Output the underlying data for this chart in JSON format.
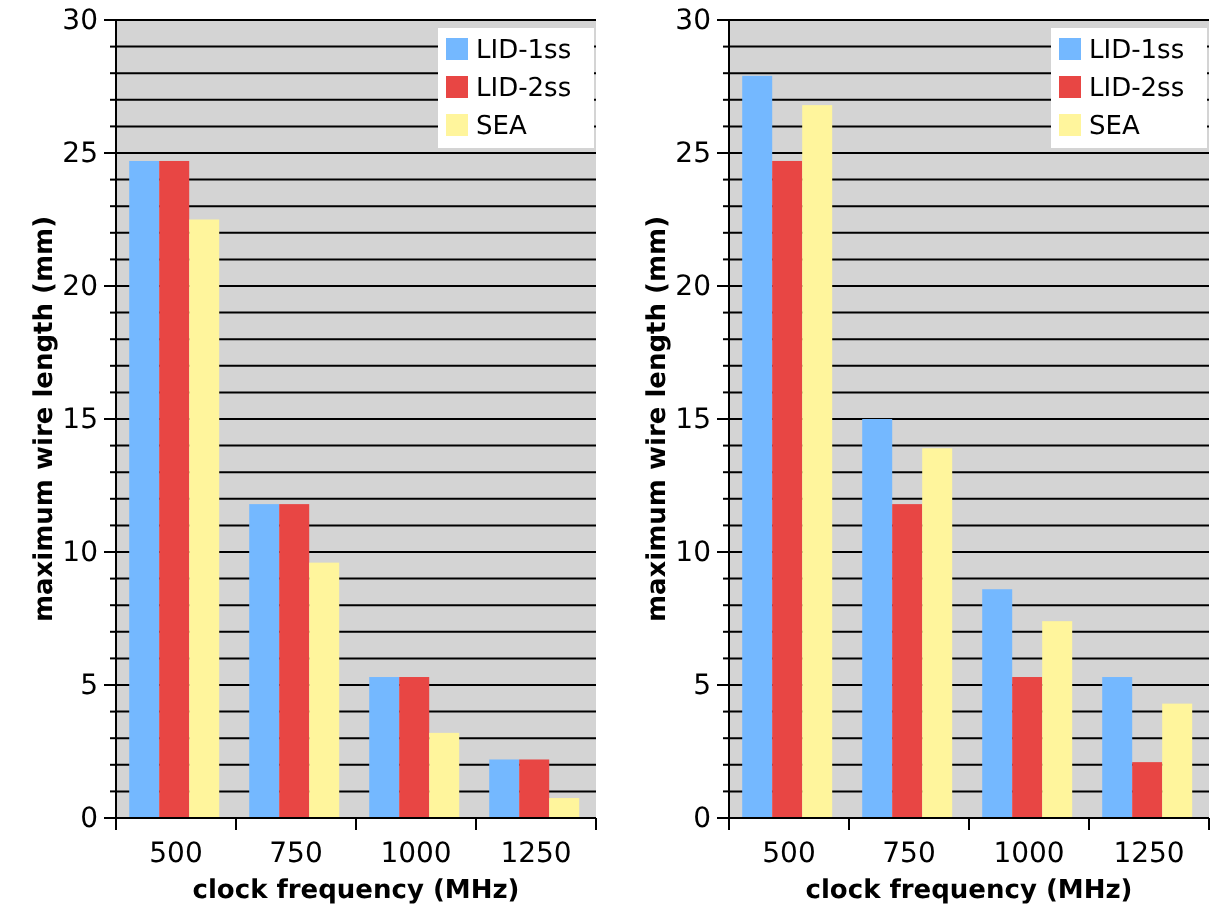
{
  "chart_data": [
    {
      "type": "bar",
      "xlabel": "clock frequency (MHz)",
      "ylabel": "maximum wire length (mm)",
      "categories": [
        "500",
        "750",
        "1000",
        "1250"
      ],
      "series": [
        {
          "name": "LID-1ss",
          "color": "#74b8ff",
          "values": [
            24.7,
            11.8,
            5.3,
            2.2
          ]
        },
        {
          "name": "LID-2ss",
          "color": "#e84644",
          "values": [
            24.7,
            11.8,
            5.3,
            2.2
          ]
        },
        {
          "name": "SEA",
          "color": "#fff59c",
          "values": [
            22.5,
            9.6,
            3.2,
            0.75
          ]
        }
      ],
      "ylim": [
        0,
        30
      ],
      "yticks": [
        0,
        {
          "value": 1,
          "label": null
        },
        {
          "value": 2,
          "label": null
        },
        {
          "value": 3,
          "label": null
        },
        {
          "value": 4,
          "label": null
        },
        5,
        {
          "value": 6,
          "label": null
        },
        {
          "value": 7,
          "label": null
        },
        {
          "value": 8,
          "label": null
        },
        {
          "value": 9,
          "label": null
        },
        10,
        {
          "value": 11,
          "label": null
        },
        {
          "value": 12,
          "label": null
        },
        {
          "value": 13,
          "label": null
        },
        {
          "value": 14,
          "label": null
        },
        15,
        {
          "value": 16,
          "label": null
        },
        {
          "value": 17,
          "label": null
        },
        {
          "value": 18,
          "label": null
        },
        {
          "value": 19,
          "label": null
        },
        20,
        {
          "value": 21,
          "label": null
        },
        {
          "value": 22,
          "label": null
        },
        {
          "value": 23,
          "label": null
        },
        {
          "value": 24,
          "label": null
        },
        25,
        {
          "value": 26,
          "label": null
        },
        {
          "value": 27,
          "label": null
        },
        {
          "value": 28,
          "label": null
        },
        {
          "value": 29,
          "label": null
        },
        30
      ],
      "grid": "y",
      "legend": "top right"
    },
    {
      "type": "bar",
      "xlabel": "clock frequency (MHz)",
      "ylabel": "maximum wire length (mm)",
      "categories": [
        "500",
        "750",
        "1000",
        "1250"
      ],
      "series": [
        {
          "name": "LID-1ss",
          "color": "#74b8ff",
          "values": [
            27.9,
            15.0,
            8.6,
            5.3
          ]
        },
        {
          "name": "LID-2ss",
          "color": "#e84644",
          "values": [
            24.7,
            11.8,
            5.3,
            2.1
          ]
        },
        {
          "name": "SEA",
          "color": "#fff59c",
          "values": [
            26.8,
            13.9,
            7.4,
            4.3
          ]
        }
      ],
      "ylim": [
        0,
        30
      ],
      "yticks": [
        0,
        {
          "value": 1,
          "label": null
        },
        {
          "value": 2,
          "label": null
        },
        {
          "value": 3,
          "label": null
        },
        {
          "value": 4,
          "label": null
        },
        5,
        {
          "value": 6,
          "label": null
        },
        {
          "value": 7,
          "label": null
        },
        {
          "value": 8,
          "label": null
        },
        {
          "value": 9,
          "label": null
        },
        10,
        {
          "value": 11,
          "label": null
        },
        {
          "value": 12,
          "label": null
        },
        {
          "value": 13,
          "label": null
        },
        {
          "value": 14,
          "label": null
        },
        15,
        {
          "value": 16,
          "label": null
        },
        {
          "value": 17,
          "label": null
        },
        {
          "value": 18,
          "label": null
        },
        {
          "value": 19,
          "label": null
        },
        20,
        {
          "value": 21,
          "label": null
        },
        {
          "value": 22,
          "label": null
        },
        {
          "value": 23,
          "label": null
        },
        {
          "value": 24,
          "label": null
        },
        25,
        {
          "value": 26,
          "label": null
        },
        {
          "value": 27,
          "label": null
        },
        {
          "value": 28,
          "label": null
        },
        {
          "value": 29,
          "label": null
        },
        30
      ],
      "grid": "y",
      "legend": "top right"
    }
  ]
}
